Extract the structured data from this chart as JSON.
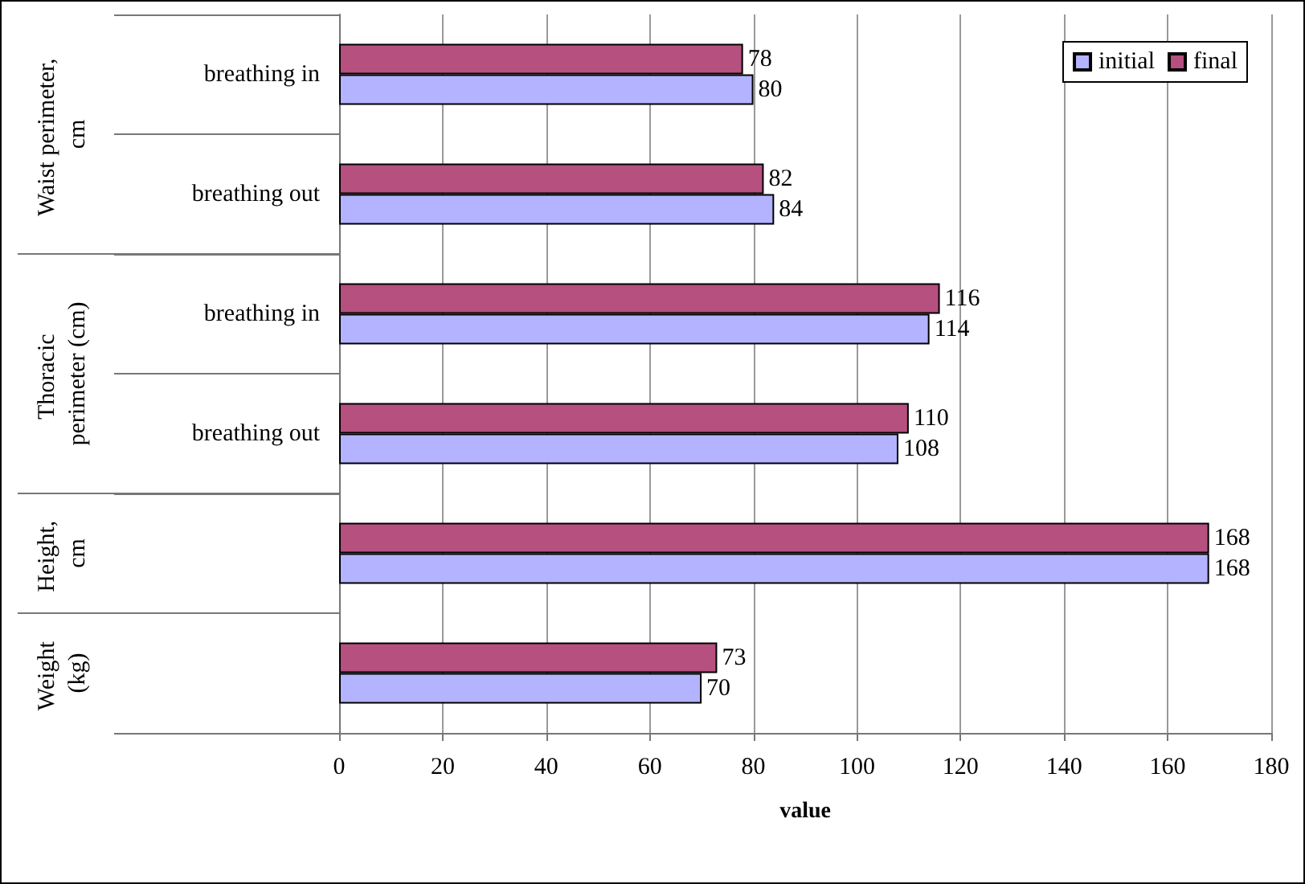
{
  "chart_data": {
    "type": "bar",
    "orientation": "horizontal",
    "xlabel": "value",
    "categories": [
      "breathing in",
      "breathing out",
      "breathing in",
      "breathing out",
      null,
      null
    ],
    "annotations": [
      "Waist perimeter, cm",
      "Thoracic perimeter (cm)",
      "Height, cm",
      "Weight (kg)"
    ],
    "series": [
      {
        "name": "initial",
        "color": "#b3b3ff",
        "values": [
          80,
          84,
          114,
          108,
          168,
          70
        ]
      },
      {
        "name": "final",
        "color": "#b5507f",
        "values": [
          78,
          82,
          116,
          110,
          168,
          73
        ]
      }
    ],
    "xlim": [
      0,
      180
    ],
    "xticks": [
      0,
      20,
      40,
      60,
      80,
      100,
      120,
      140,
      160,
      180
    ],
    "grid": "x",
    "legend": "top right",
    "data_labels": true
  }
}
